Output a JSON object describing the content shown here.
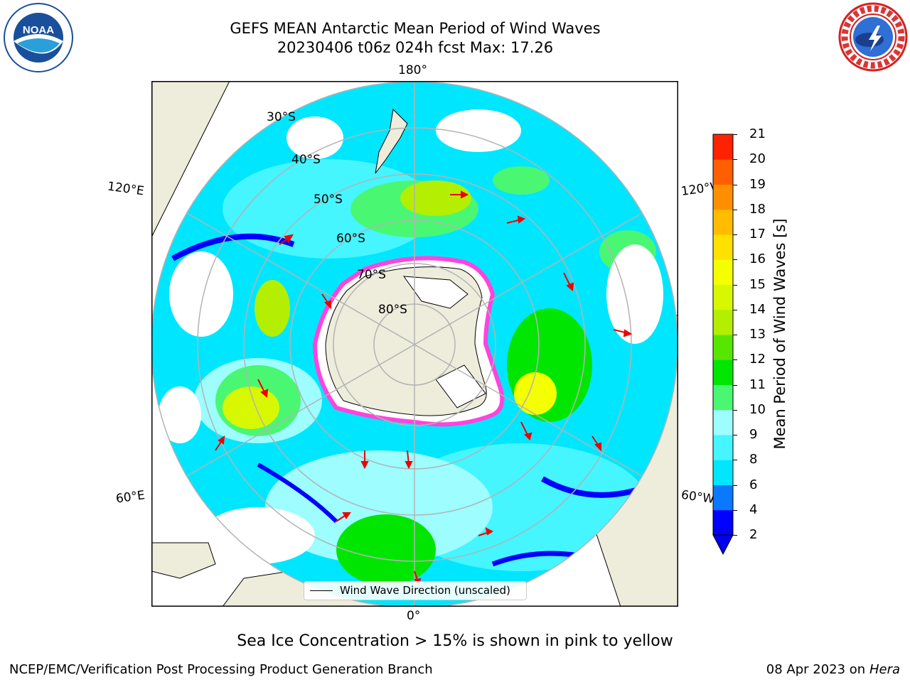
{
  "title": {
    "line1": "GEFS MEAN Antarctic Mean Period of Wind Waves",
    "line2": "20230406 t06z 024h fcst   Max: 17.26"
  },
  "map": {
    "projection": "south-polar-stereographic",
    "longitude_labels": {
      "top": "180°",
      "bottom": "0°",
      "upper_left": "120°E",
      "upper_right": "120°W",
      "lower_left": "60°E",
      "lower_right": "60°W"
    },
    "latitude_labels": [
      "30°S",
      "40°S",
      "50°S",
      "60°S",
      "70°S",
      "80°S"
    ],
    "legend": "Wind Wave Direction (unscaled)",
    "colors": {
      "land": "#eeecdb",
      "ocean_missing": "#ffffff",
      "ice_edge": "#ff44dd",
      "arrows": "#ff0000",
      "grid": "#b3b3b3"
    }
  },
  "colorbar": {
    "label": "Mean Period of Wind Waves [s]",
    "ticks": [
      "2",
      "4",
      "6",
      "8",
      "9",
      "10",
      "11",
      "12",
      "13",
      "14",
      "15",
      "16",
      "17",
      "18",
      "19",
      "20",
      "21"
    ],
    "colors": [
      "#0000ff",
      "#0a78ff",
      "#00e6ff",
      "#45f5ff",
      "#9dfdff",
      "#4af772",
      "#00e600",
      "#57e600",
      "#b4ee00",
      "#d7f800",
      "#f4ff00",
      "#ffe100",
      "#ffbc00",
      "#ff8f00",
      "#ff5f00",
      "#ff2200"
    ],
    "under_color": "#0000ee"
  },
  "caption": "Sea Ice Concentration > 15% is shown in pink to yellow",
  "footer": {
    "left": "NCEP/EMC/Verification Post Processing Product Generation Branch",
    "right_date": "08 Apr 2023 on ",
    "right_host": "Hera"
  },
  "logos": {
    "noaa": "NOAA",
    "nws": "NATIONAL WEATHER SERVICE"
  }
}
